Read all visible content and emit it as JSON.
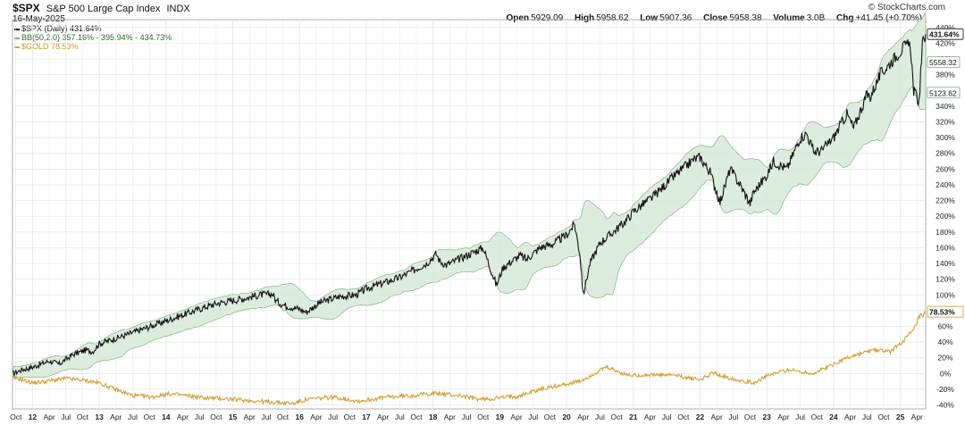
{
  "header": {
    "symbol": "$SPX",
    "name": "S&P 500 Large Cap Index",
    "exchange": "INDX",
    "date": "16-May-2025",
    "brand": "© StockCharts.com",
    "open_label": "Open",
    "open": "5929.09",
    "high_label": "High",
    "high": "5958.62",
    "low_label": "Low",
    "low": "5907.36",
    "close_label": "Close",
    "close": "5958.38",
    "volume_label": "Volume",
    "volume": "3.0B",
    "chg_label": "Chg",
    "chg": "+41.45 (+0.70%)"
  },
  "legend": {
    "spx": "$SPX (Daily) 431.64%",
    "bb": "BB(50,2.0) 357.16% - 395.94% - 434.73%",
    "gold": "$GOLD 78.53%"
  },
  "colors": {
    "spx": "#111111",
    "band_fill": "#d7ead7",
    "band_stroke": "#7aa67a",
    "gold": "#d4a036",
    "grid": "#e6e6e6",
    "axis": "#999999"
  },
  "chart_data": {
    "type": "line",
    "x_ticks": [
      "Oct",
      "12",
      "Apr",
      "Jul",
      "Oct",
      "13",
      "Apr",
      "Jul",
      "Oct",
      "14",
      "Apr",
      "Jul",
      "Oct",
      "15",
      "Apr",
      "Jul",
      "Oct",
      "16",
      "Apr",
      "Jul",
      "Oct",
      "17",
      "Apr",
      "Jul",
      "Oct",
      "18",
      "Apr",
      "Jul",
      "Oct",
      "19",
      "Apr",
      "Jul",
      "Oct",
      "20",
      "Apr",
      "Jul",
      "Oct",
      "21",
      "Apr",
      "Jul",
      "Oct",
      "22",
      "Apr",
      "Jul",
      "Oct",
      "23",
      "Apr",
      "Jul",
      "Oct",
      "24",
      "Apr",
      "Jul",
      "Oct",
      "25",
      "Apr"
    ],
    "y_ticks": [
      440,
      420,
      400,
      380,
      360,
      340,
      320,
      300,
      280,
      260,
      240,
      220,
      200,
      180,
      160,
      140,
      120,
      100,
      80,
      60,
      40,
      20,
      0,
      -20,
      -40
    ],
    "y_unit": "%",
    "ylim": [
      -45,
      450
    ],
    "x_range": [
      2011.7,
      2025.38
    ],
    "labels": {
      "spx_last": "431.64%",
      "bb_upper": "434.73%",
      "bb_mid": "5558.32",
      "bb_lower": "5123.62",
      "gold_last": "78.53%"
    },
    "series": [
      {
        "name": "$SPX",
        "x": [
          2011.7,
          2011.85,
          2012.0,
          2012.25,
          2012.4,
          2012.6,
          2012.8,
          2012.9,
          2013.0,
          2013.3,
          2013.6,
          2013.9,
          2014.1,
          2014.3,
          2014.6,
          2014.8,
          2014.95,
          2015.2,
          2015.4,
          2015.6,
          2015.65,
          2015.8,
          2016.0,
          2016.1,
          2016.3,
          2016.6,
          2016.85,
          2017.0,
          2017.5,
          2017.9,
          2018.05,
          2018.1,
          2018.2,
          2018.5,
          2018.75,
          2018.95,
          2019.05,
          2019.3,
          2019.4,
          2019.6,
          2019.8,
          2020.0,
          2020.12,
          2020.2,
          2020.25,
          2020.35,
          2020.5,
          2020.7,
          2020.9,
          2021.0,
          2021.3,
          2021.6,
          2021.9,
          2022.0,
          2022.15,
          2022.3,
          2022.45,
          2022.6,
          2022.75,
          2022.8,
          2023.0,
          2023.1,
          2023.3,
          2023.5,
          2023.6,
          2023.7,
          2023.82,
          2024.0,
          2024.2,
          2024.3,
          2024.5,
          2024.55,
          2024.7,
          2024.9,
          2025.05,
          2025.15,
          2025.2,
          2025.28,
          2025.33,
          2025.38
        ],
        "values": [
          0,
          5,
          8,
          16,
          12,
          24,
          30,
          28,
          38,
          46,
          55,
          64,
          70,
          76,
          85,
          90,
          92,
          96,
          100,
          101,
          92,
          86,
          82,
          78,
          90,
          98,
          100,
          108,
          122,
          140,
          152,
          143,
          138,
          150,
          160,
          112,
          135,
          150,
          145,
          160,
          165,
          176,
          190,
          152,
          100,
          140,
          166,
          180,
          195,
          206,
          225,
          250,
          272,
          275,
          256,
          218,
          260,
          240,
          216,
          230,
          252,
          270,
          260,
          300,
          305,
          282,
          283,
          300,
          330,
          312,
          355,
          352,
          380,
          400,
          415,
          418,
          360,
          345,
          418,
          431.64
        ]
      },
      {
        "name": "$GOLD",
        "x": [
          2011.7,
          2011.85,
          2012.0,
          2012.2,
          2012.5,
          2012.8,
          2013.0,
          2013.3,
          2013.5,
          2013.8,
          2014.0,
          2014.2,
          2014.6,
          2014.9,
          2015.2,
          2015.5,
          2015.9,
          2016.1,
          2016.5,
          2016.9,
          2017.3,
          2017.7,
          2018.0,
          2018.4,
          2018.7,
          2019.0,
          2019.3,
          2019.6,
          2019.9,
          2020.2,
          2020.6,
          2020.9,
          2021.2,
          2021.6,
          2022.0,
          2022.2,
          2022.4,
          2022.8,
          2022.95,
          2023.3,
          2023.7,
          2023.9,
          2024.2,
          2024.6,
          2024.85,
          2025.0,
          2025.2,
          2025.3,
          2025.33,
          2025.38
        ],
        "values": [
          -5,
          -8,
          -12,
          -10,
          -6,
          -9,
          -12,
          -22,
          -28,
          -30,
          -26,
          -27,
          -31,
          -32,
          -34,
          -36,
          -38,
          -33,
          -30,
          -35,
          -30,
          -28,
          -25,
          -28,
          -33,
          -31,
          -28,
          -20,
          -15,
          -10,
          8,
          -2,
          -2,
          -2,
          -8,
          1,
          -5,
          -12,
          -5,
          5,
          0,
          8,
          20,
          30,
          28,
          38,
          55,
          75,
          70,
          78.53
        ]
      }
    ]
  }
}
